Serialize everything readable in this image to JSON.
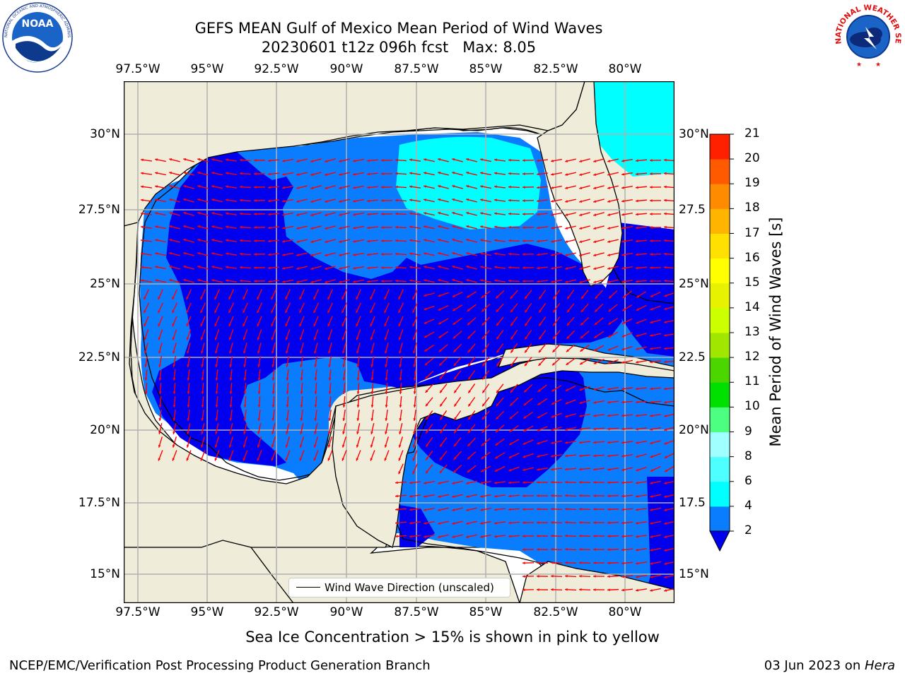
{
  "title": {
    "line1": "GEFS MEAN Gulf of Mexico Mean Period of Wind Waves",
    "line2": "20230601 t12z 096h fcst   Max: 8.05"
  },
  "logos": {
    "left": "NOAA",
    "left_ring_text": "NATIONAL OCEANIC AND ATMOSPHERIC ADMINISTRATION · U.S. DEPARTMENT OF COMMERCE",
    "right_ring_text": "NATIONAL WEATHER SERVICE"
  },
  "map": {
    "lon_ticks": [
      "97.5°W",
      "95°W",
      "92.5°W",
      "90°W",
      "87.5°W",
      "85°W",
      "82.5°W",
      "80°W"
    ],
    "lat_ticks_left": [
      "30°N",
      "27.5°N",
      "25°N",
      "22.5°N",
      "20°N",
      "17.5°N",
      "15°N"
    ],
    "lat_ticks_right": [
      "30°N",
      "27.5",
      "25°N",
      "22.5",
      "20°N",
      "17.5",
      "15°N"
    ],
    "legend_label": "Wind Wave Direction (unscaled)",
    "colors": {
      "land": "#efedda",
      "level_2_4": "#0a7dff",
      "below_2": "#0000ee",
      "level_4_6": "#00ffff",
      "arrows": "#ff0000",
      "grid": "#b0b0b0"
    }
  },
  "colorbar": {
    "label": "Mean Period of Wind Waves [s]",
    "ticks": [
      "2",
      "4",
      "6",
      "8",
      "9",
      "10",
      "11",
      "12",
      "13",
      "14",
      "15",
      "16",
      "17",
      "18",
      "19",
      "20",
      "21"
    ],
    "colors": [
      "#0a7dff",
      "#00ffff",
      "#4dffff",
      "#a0ffff",
      "#4dff80",
      "#00e000",
      "#4cd600",
      "#a0e600",
      "#ccff00",
      "#e6f200",
      "#ffff00",
      "#ffe000",
      "#ffb400",
      "#ff8c00",
      "#ff5a00",
      "#ff2000"
    ],
    "under_color": "#0000ee"
  },
  "caption": "Sea Ice Concentration > 15% is shown in pink to yellow",
  "footer": {
    "left": "NCEP/EMC/Verification Post Processing Product Generation Branch",
    "right_date": "03 Jun 2023 on ",
    "right_host": "Hera"
  }
}
